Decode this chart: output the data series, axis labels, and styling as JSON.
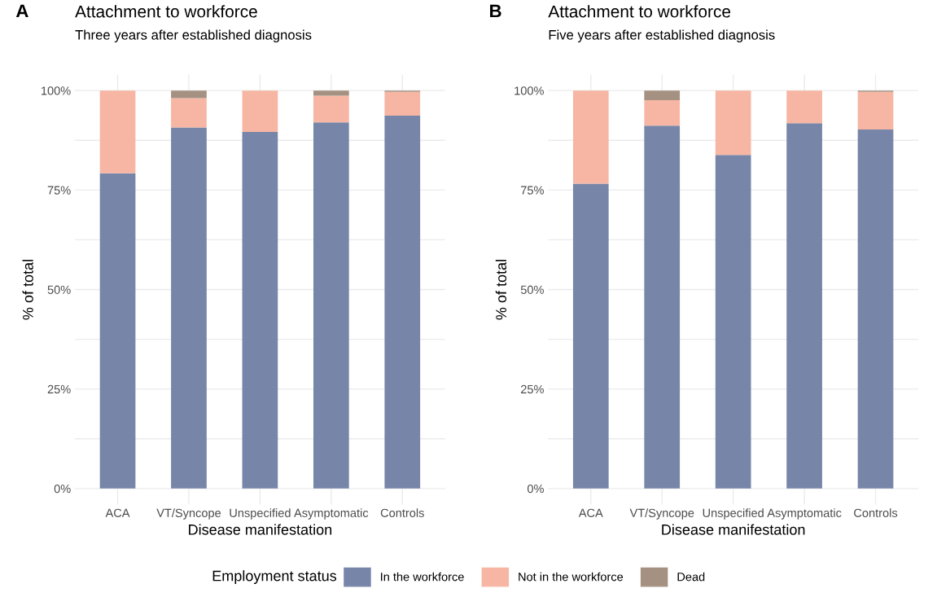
{
  "chart_data": [
    {
      "type": "bar",
      "stacked": true,
      "title": "Attachment to workforce",
      "subtitle": "Three years after established diagnosis",
      "xlabel": "Disease manifestation",
      "ylabel": "% of total",
      "legend_title": "Employment status",
      "legend": "bottom",
      "grid": true,
      "annotations": [
        "A"
      ],
      "categories": [
        "ACA",
        "VT/Syncope",
        "Unspecified",
        "Asymptomatic",
        "Controls"
      ],
      "ylim": [
        -4,
        104
      ],
      "yticks": [
        {
          "value": 0,
          "label": "0%"
        },
        {
          "value": 12.5,
          "label": null
        },
        {
          "value": 25,
          "label": "25%"
        },
        {
          "value": 37.5,
          "label": null
        },
        {
          "value": 50,
          "label": "50%"
        },
        {
          "value": 62.5,
          "label": null
        },
        {
          "value": 75,
          "label": "75%"
        },
        {
          "value": 87.5,
          "label": null
        },
        {
          "value": 100,
          "label": "100%"
        }
      ],
      "series": [
        {
          "name": "In the workforce",
          "color": "#7786a8",
          "values": [
            79.2,
            90.7,
            89.6,
            92.0,
            93.7
          ]
        },
        {
          "name": "Not in the workforce",
          "color": "#f7b6a3",
          "values": [
            20.8,
            7.4,
            10.4,
            6.7,
            6.0
          ]
        },
        {
          "name": "Dead",
          "color": "#a59181",
          "values": [
            0,
            1.9,
            0,
            1.3,
            0.3
          ]
        }
      ]
    },
    {
      "type": "bar",
      "stacked": true,
      "title": "Attachment to workforce",
      "subtitle": "Five years after established diagnosis",
      "xlabel": "Disease manifestation",
      "ylabel": "% of total",
      "grid": true,
      "annotations": [
        "B"
      ],
      "categories": [
        "ACA",
        "VT/Syncope",
        "Unspecified",
        "Asymptomatic",
        "Controls"
      ],
      "ylim": [
        -4,
        104
      ],
      "yticks": [
        {
          "value": 0,
          "label": "0%"
        },
        {
          "value": 12.5,
          "label": null
        },
        {
          "value": 25,
          "label": "25%"
        },
        {
          "value": 37.5,
          "label": null
        },
        {
          "value": 50,
          "label": "50%"
        },
        {
          "value": 62.5,
          "label": null
        },
        {
          "value": 75,
          "label": "75%"
        },
        {
          "value": 87.5,
          "label": null
        },
        {
          "value": 100,
          "label": "100%"
        }
      ],
      "series": [
        {
          "color": "#7786a8",
          "values": [
            76.6,
            91.2,
            83.8,
            91.8,
            90.2
          ]
        },
        {
          "color": "#f7b6a3",
          "values": [
            23.4,
            6.4,
            16.2,
            8.2,
            9.5
          ]
        },
        {
          "color": "#a59181",
          "values": [
            0,
            2.4,
            0,
            0,
            0.3
          ]
        }
      ]
    }
  ]
}
